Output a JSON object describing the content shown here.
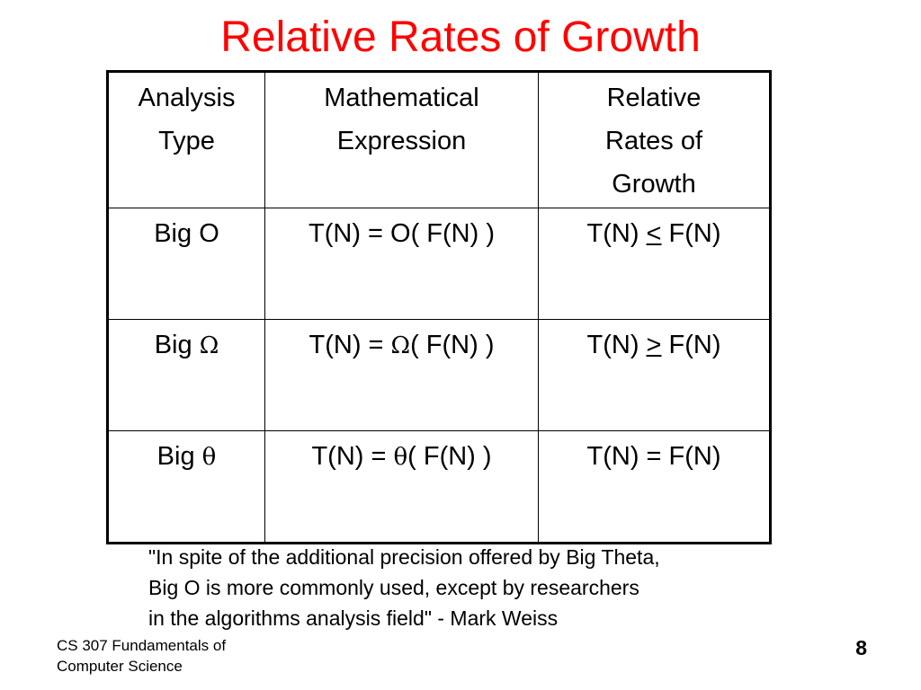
{
  "slide": {
    "title": "Relative Rates of Growth",
    "table": {
      "headers": [
        [
          "Analysis",
          "Type"
        ],
        [
          "Mathematical",
          "Expression"
        ],
        [
          "Relative",
          "Rates of",
          "Growth"
        ]
      ],
      "rows": [
        {
          "analysis_prefix": "Big",
          "analysis_symbol": "O",
          "expression_prefix": "T(N) = ",
          "expression_symbol": "O",
          "expression_suffix": "( F(N) )",
          "growth_left": "T(N) ",
          "growth_operator": "<",
          "growth_right": " F(N)"
        },
        {
          "analysis_prefix": "Big",
          "analysis_symbol": "Ω",
          "expression_prefix": "T(N) = ",
          "expression_symbol": "Ω",
          "expression_suffix": "( F(N) )",
          "growth_left": "T(N) ",
          "growth_operator": ">",
          "growth_right": " F(N)"
        },
        {
          "analysis_prefix": "Big",
          "analysis_symbol": "θ",
          "expression_prefix": "T(N) = ",
          "expression_symbol": "θ",
          "expression_suffix": "( F(N) )",
          "growth_left": "T(N) ",
          "growth_operator": "=",
          "growth_right": " F(N)"
        }
      ]
    },
    "quote_lines": [
      "\"In spite of the additional precision offered by Big Theta,",
      "Big O is more commonly used, except by researchers",
      "in the algorithms analysis field\" - Mark Weiss"
    ],
    "footer_lines": [
      "CS 307 Fundamentals of",
      "Computer Science"
    ],
    "page_number": "8"
  },
  "colors": {
    "title": "#ff0000",
    "text": "#000000",
    "background": "#ffffff"
  }
}
